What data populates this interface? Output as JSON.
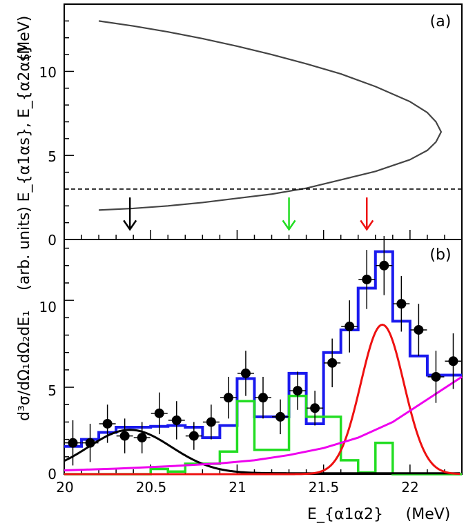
{
  "chart_data": [
    {
      "panel": "(a)",
      "type": "scatter",
      "ylabel": "E_{α1αs}, E_{α2αs}",
      "ylabel_unit": "(MeV)",
      "ylim": [
        0,
        14
      ],
      "xlim": [
        20,
        22.3
      ],
      "yticks": [
        "5",
        "10"
      ],
      "origin_label": "0",
      "grid": false,
      "kinematic_curve": {
        "x": [
          20.2,
          20.4,
          20.6,
          20.8,
          21.0,
          21.2,
          21.4,
          21.6,
          21.8,
          22.0,
          22.1,
          22.15,
          22.18,
          22.15,
          22.1,
          22.0,
          21.8,
          21.6,
          21.4,
          21.2,
          21.0,
          20.8,
          20.6,
          20.4,
          20.2
        ],
        "y": [
          13.0,
          12.7,
          12.35,
          11.95,
          11.5,
          11.0,
          10.45,
          9.85,
          9.1,
          8.2,
          7.55,
          7.0,
          6.4,
          5.8,
          5.3,
          4.75,
          4.05,
          3.55,
          3.05,
          2.7,
          2.45,
          2.2,
          2.0,
          1.85,
          1.75
        ]
      },
      "threshold_line": {
        "y": 3.0,
        "style": "dashed"
      },
      "arrows": [
        {
          "x": 20.38,
          "color": "#000000"
        },
        {
          "x": 21.3,
          "color": "#22dd22"
        },
        {
          "x": 21.75,
          "color": "#ee1111"
        }
      ]
    },
    {
      "panel": "(b)",
      "type": "line",
      "ylabel": "d³σ/dΩ₁dΩ₂dE₁",
      "ylabel_unit": "(arb. units)",
      "xlabel": "E_{α1α2}",
      "xlabel_unit": "(MeV)",
      "xlim": [
        20,
        22.3
      ],
      "ylim": [
        0,
        13.5
      ],
      "xticks": [
        "20",
        "20.5",
        "21",
        "21.5",
        "22"
      ],
      "yticks": [
        "0",
        "5",
        "10"
      ],
      "grid": false,
      "data_points": {
        "x": [
          20.05,
          20.15,
          20.25,
          20.35,
          20.45,
          20.55,
          20.65,
          20.75,
          20.85,
          20.95,
          21.05,
          21.15,
          21.25,
          21.35,
          21.45,
          21.55,
          21.65,
          21.75,
          21.85,
          21.95,
          22.05,
          22.15,
          22.25
        ],
        "y": [
          1.8,
          1.8,
          2.9,
          2.2,
          2.1,
          3.5,
          3.1,
          2.2,
          3.0,
          4.4,
          5.8,
          4.4,
          3.3,
          4.8,
          3.8,
          6.4,
          8.5,
          11.2,
          12.0,
          9.8,
          8.3,
          5.6,
          6.5
        ],
        "yerr": [
          1.3,
          1.1,
          1.1,
          1.0,
          0.9,
          1.2,
          1.1,
          0.8,
          1.0,
          1.2,
          1.3,
          1.2,
          1.0,
          1.1,
          1.0,
          1.4,
          1.5,
          1.7,
          1.7,
          1.6,
          1.5,
          1.5,
          1.6
        ]
      },
      "series": [
        {
          "color": "#1a1aee",
          "style": "histogram",
          "edges": [
            20.0,
            20.1,
            20.2,
            20.3,
            20.4,
            20.5,
            20.6,
            20.7,
            20.8,
            20.9,
            21.0,
            21.1,
            21.2,
            21.3,
            21.4,
            21.5,
            21.6,
            21.7,
            21.8,
            21.9,
            22.0,
            22.1,
            22.2,
            22.3
          ],
          "values": [
            1.6,
            2.0,
            2.4,
            2.7,
            2.7,
            2.75,
            2.8,
            2.7,
            2.1,
            2.8,
            5.5,
            3.3,
            3.3,
            5.8,
            2.9,
            7.0,
            8.3,
            10.7,
            12.8,
            8.8,
            6.8,
            5.7,
            5.7
          ]
        },
        {
          "color": "#22dd22",
          "style": "histogram",
          "edges": [
            20.0,
            20.1,
            20.2,
            20.3,
            20.4,
            20.5,
            20.6,
            20.7,
            20.8,
            20.9,
            21.0,
            21.1,
            21.2,
            21.3,
            21.4,
            21.5,
            21.6,
            21.7,
            21.8,
            21.9,
            22.0,
            22.1,
            22.2,
            22.3
          ],
          "values": [
            0,
            0,
            0,
            0,
            0,
            0.3,
            0.15,
            0.6,
            0.6,
            1.3,
            4.2,
            1.4,
            1.4,
            4.5,
            3.3,
            3.3,
            0.8,
            0.1,
            1.8,
            0,
            0,
            0,
            0
          ]
        },
        {
          "color": "#000000",
          "style": "gaussian",
          "mean": 20.38,
          "sigma": 0.24,
          "amp": 2.5,
          "offset": 0.05
        },
        {
          "color": "#ee1111",
          "style": "gaussian",
          "mean": 21.84,
          "sigma": 0.125,
          "amp": 8.6,
          "offset": 0
        },
        {
          "color": "#ee00ee",
          "style": "curve",
          "x": [
            20.0,
            20.3,
            20.6,
            20.9,
            21.1,
            21.3,
            21.5,
            21.7,
            21.9,
            22.1,
            22.3
          ],
          "y": [
            0.22,
            0.32,
            0.45,
            0.62,
            0.8,
            1.1,
            1.5,
            2.1,
            3.0,
            4.3,
            5.6
          ]
        }
      ]
    }
  ]
}
